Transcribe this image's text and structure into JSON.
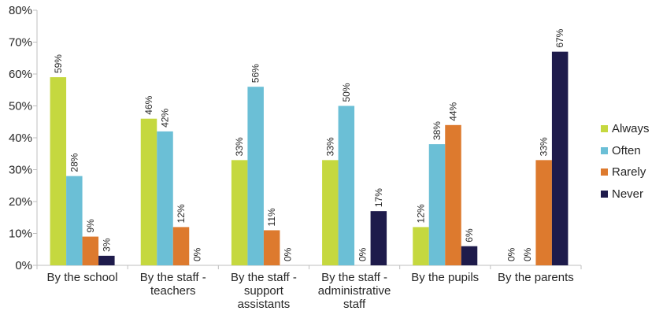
{
  "chart_data": {
    "type": "bar",
    "categories": [
      [
        "By the school"
      ],
      [
        "By the staff -",
        "teachers"
      ],
      [
        "By the staff -",
        "support",
        "assistants"
      ],
      [
        "By the staff -",
        "administrative",
        "staff"
      ],
      [
        "By the pupils"
      ],
      [
        "By the parents"
      ]
    ],
    "series": [
      {
        "name": "Always",
        "color": "#c5d83f",
        "values": [
          59,
          46,
          33,
          33,
          12,
          0
        ]
      },
      {
        "name": "Often",
        "color": "#6bbfd6",
        "values": [
          28,
          42,
          56,
          50,
          38,
          0
        ]
      },
      {
        "name": "Rarely",
        "color": "#dd7a2e",
        "values": [
          9,
          12,
          11,
          0,
          44,
          33
        ]
      },
      {
        "name": "Never",
        "color": "#1e1b4b",
        "values": [
          3,
          0,
          0,
          17,
          6,
          67
        ]
      }
    ],
    "value_suffix": "%",
    "ylim": [
      0,
      80
    ],
    "yticks": [
      "0%",
      "10%",
      "20%",
      "30%",
      "40%",
      "50%",
      "60%",
      "70%",
      "80%"
    ],
    "legend_position": "right",
    "grid": false
  }
}
